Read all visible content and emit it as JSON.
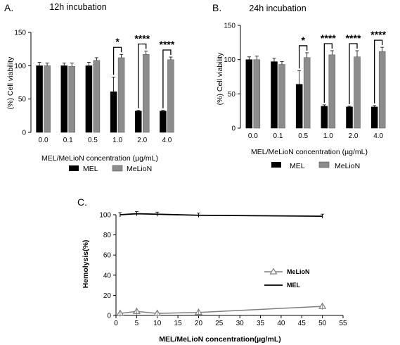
{
  "chart_data": [
    {
      "panel": "A.",
      "type": "bar",
      "title": "12h incubation",
      "xlabel": "MEL/MeLioN concentration (µg/mL)",
      "ylabel": "(%) Cell viability",
      "ylim": [
        0,
        150
      ],
      "yticks": [
        "0",
        "50",
        "100",
        "150"
      ],
      "categories": [
        "0.0",
        "0.1",
        "0.5",
        "1.0",
        "2.0",
        "4.0"
      ],
      "series": [
        {
          "name": "MEL",
          "color": "#000000",
          "values": [
            100,
            100,
            100,
            61,
            32,
            32
          ],
          "errors": [
            5,
            4,
            5,
            22,
            1,
            1
          ]
        },
        {
          "name": "MeLioN",
          "color": "#8c8c8c",
          "values": [
            100,
            99,
            108,
            112,
            117,
            109
          ],
          "errors": [
            4,
            5,
            4,
            5,
            5,
            4
          ]
        }
      ],
      "significance": [
        "",
        "",
        "",
        "*",
        "****",
        "****"
      ],
      "legend": "bottom"
    },
    {
      "panel": "B.",
      "type": "bar",
      "title": "24h incubation",
      "xlabel": "MEL/MeLioN concentration (µg/mL)",
      "ylabel": "(%) Cell viability",
      "ylim": [
        0,
        150
      ],
      "yticks": [
        "0",
        "50",
        "100",
        "150"
      ],
      "categories": [
        "0.0",
        "0.1",
        "0.5",
        "1.0",
        "2.0",
        "4.0"
      ],
      "series": [
        {
          "name": "MEL",
          "color": "#000000",
          "values": [
            100,
            97,
            64,
            32,
            31,
            31
          ],
          "errors": [
            4,
            5,
            20,
            2,
            1,
            2
          ]
        },
        {
          "name": "MeLioN",
          "color": "#8c8c8c",
          "values": [
            100,
            93,
            103,
            107,
            104,
            112
          ],
          "errors": [
            5,
            4,
            7,
            6,
            9,
            6
          ]
        }
      ],
      "significance": [
        "",
        "",
        "*",
        "****",
        "****",
        "****"
      ],
      "legend": "bottom"
    },
    {
      "panel": "C.",
      "type": "line",
      "title": "",
      "xlabel": "MEL/MeLioN concentration(µg/mL)",
      "ylabel": "Hemolysis(%)",
      "xlim": [
        0,
        55
      ],
      "ylim": [
        0,
        100
      ],
      "xticks": [
        "0",
        "5",
        "10",
        "15",
        "20",
        "25",
        "30",
        "35",
        "40",
        "45",
        "50",
        "55"
      ],
      "yticks": [
        "0",
        "20",
        "40",
        "60",
        "80",
        "100"
      ],
      "series": [
        {
          "name": "MeLioN",
          "color": "#808080",
          "marker": "triangle",
          "x": [
            1,
            5,
            10,
            20,
            50
          ],
          "y": [
            2,
            4,
            2,
            3,
            9
          ]
        },
        {
          "name": "MEL",
          "color": "#000000",
          "marker": "none",
          "x": [
            1,
            5,
            10,
            20,
            50
          ],
          "y": [
            100,
            101,
            100.5,
            99.5,
            98.5
          ]
        }
      ],
      "legend": "right"
    }
  ]
}
